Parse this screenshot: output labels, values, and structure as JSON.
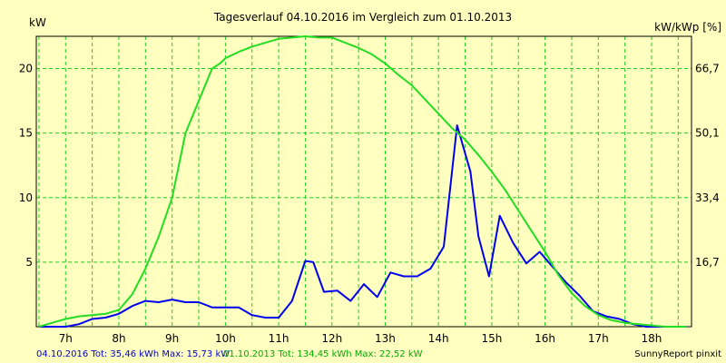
{
  "chart_data": {
    "type": "line",
    "title": "Tagesverlauf 04.10.2016 im Vergleich zum 01.10.2013",
    "ylabel_left": "kW",
    "ylabel_right": "kW/kWp [%]",
    "x_ticks": [
      "7h",
      "8h",
      "9h",
      "10h",
      "11h",
      "12h",
      "13h",
      "14h",
      "15h",
      "16h",
      "17h",
      "18h"
    ],
    "xlim": [
      6.45,
      18.75
    ],
    "ylim": [
      0,
      22.5
    ],
    "y_ticks_left": [
      "5",
      "10",
      "15",
      "20"
    ],
    "y_ticks_right": [
      "16,7",
      "33,4",
      "50,1",
      "66,7"
    ],
    "y_tick_values": [
      5,
      10,
      15,
      20
    ],
    "grid": true,
    "series": [
      {
        "color": "#0000EE",
        "x": [
          6.5,
          7.0,
          7.25,
          7.5,
          7.75,
          8.0,
          8.25,
          8.5,
          8.75,
          9.0,
          9.25,
          9.5,
          9.75,
          10.0,
          10.25,
          10.5,
          10.75,
          11.0,
          11.25,
          11.5,
          11.65,
          11.85,
          12.1,
          12.35,
          12.6,
          12.85,
          13.1,
          13.35,
          13.6,
          13.85,
          14.1,
          14.35,
          14.6,
          14.75,
          14.95,
          15.15,
          15.4,
          15.65,
          15.9,
          16.15,
          16.4,
          16.65,
          16.9,
          17.15,
          17.4,
          17.65,
          17.9,
          18.15,
          18.4,
          18.65
        ],
        "y": [
          0,
          0,
          0.2,
          0.6,
          0.7,
          1.0,
          1.6,
          2.0,
          1.9,
          2.1,
          1.9,
          1.9,
          1.5,
          1.5,
          1.5,
          0.9,
          0.7,
          0.7,
          2.0,
          5.1,
          5.0,
          2.7,
          2.8,
          2.0,
          3.3,
          2.3,
          4.2,
          3.9,
          3.9,
          4.5,
          6.2,
          15.6,
          12.0,
          7.0,
          3.9,
          8.6,
          6.5,
          4.9,
          5.8,
          4.6,
          3.4,
          2.4,
          1.2,
          0.8,
          0.6,
          0.2,
          0,
          0,
          0,
          0
        ]
      },
      {
        "color": "#22DD22",
        "x": [
          6.5,
          6.75,
          7.0,
          7.25,
          7.5,
          7.75,
          8.0,
          8.25,
          8.5,
          8.75,
          9.0,
          9.25,
          9.5,
          9.75,
          9.9,
          10.0,
          10.25,
          10.5,
          10.75,
          11.0,
          11.25,
          11.5,
          11.75,
          12.0,
          12.25,
          12.5,
          12.75,
          13.0,
          13.25,
          13.5,
          13.75,
          14.0,
          14.25,
          14.5,
          14.75,
          15.0,
          15.25,
          15.5,
          15.75,
          16.0,
          16.25,
          16.5,
          16.75,
          17.0,
          17.25,
          17.5,
          17.75,
          18.0,
          18.25,
          18.5,
          18.65
        ],
        "y": [
          0,
          0.3,
          0.6,
          0.8,
          0.9,
          1.0,
          1.3,
          2.5,
          4.5,
          7.0,
          10.0,
          15.0,
          17.5,
          20.0,
          20.4,
          20.8,
          21.3,
          21.7,
          22.0,
          22.3,
          22.4,
          22.5,
          22.4,
          22.4,
          22.0,
          21.6,
          21.1,
          20.4,
          19.5,
          18.7,
          17.6,
          16.5,
          15.4,
          14.5,
          13.3,
          12.0,
          10.6,
          9.0,
          7.4,
          5.8,
          4.0,
          2.6,
          1.6,
          0.9,
          0.5,
          0.3,
          0.2,
          0.1,
          0,
          0,
          0
        ]
      }
    ],
    "footer": {
      "left_blue": "04.10.2016 Tot: 35,46 kWh Max: 15,73 kW",
      "left_green": "01.10.2013 Tot: 134,45 kWh Max: 22,52 kW",
      "right": "SunnyReport pinxit"
    }
  }
}
